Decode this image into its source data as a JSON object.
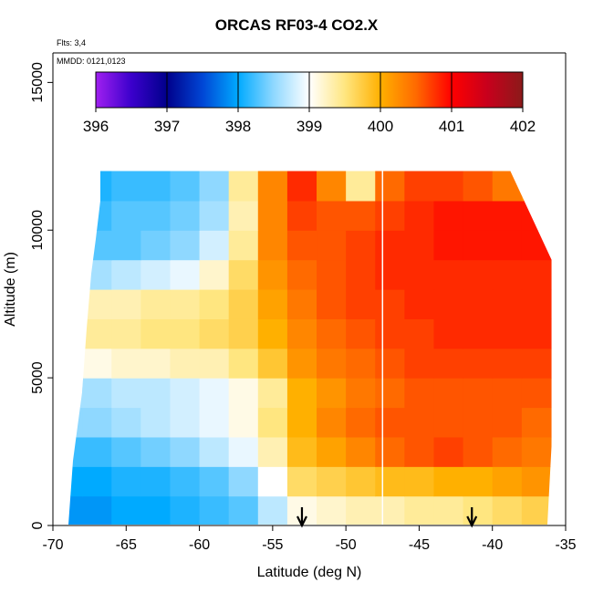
{
  "chart_data": {
    "type": "heatmap",
    "title": "ORCAS RF03-4 CO2.X",
    "annotations": [
      "Flts: 3,4",
      "MMDD: 0121,0123"
    ],
    "xlabel": "Latitude (deg N)",
    "ylabel": "Altitude (m)",
    "xlim": [
      -70,
      -35
    ],
    "ylim": [
      0,
      16000
    ],
    "xticks": [
      "-70",
      "-65",
      "-60",
      "-55",
      "-50",
      "-45",
      "-40",
      "-35"
    ],
    "xtick_values": [
      -70,
      -65,
      -60,
      -55,
      -50,
      -45,
      -40,
      -35
    ],
    "yticks": [
      "0",
      "5000",
      "10000",
      "15000"
    ],
    "ytick_values": [
      0,
      5000,
      10000,
      15000
    ],
    "colorbar": {
      "ticks": [
        "396",
        "397",
        "398",
        "399",
        "400",
        "401",
        "402"
      ],
      "range": [
        396,
        402
      ],
      "stops": [
        {
          "value": 396.0,
          "color": "#a020f0"
        },
        {
          "value": 396.5,
          "color": "#3b00cc"
        },
        {
          "value": 397.0,
          "color": "#00008b"
        },
        {
          "value": 397.5,
          "color": "#0046d5"
        },
        {
          "value": 398.0,
          "color": "#00aaff"
        },
        {
          "value": 398.5,
          "color": "#8fd8ff"
        },
        {
          "value": 399.0,
          "color": "#ffffff"
        },
        {
          "value": 399.5,
          "color": "#ffe680"
        },
        {
          "value": 400.0,
          "color": "#ffb000"
        },
        {
          "value": 400.5,
          "color": "#ff6a00"
        },
        {
          "value": 401.0,
          "color": "#ff0000"
        },
        {
          "value": 401.5,
          "color": "#c8001c"
        },
        {
          "value": 402.0,
          "color": "#8b1a1a"
        }
      ]
    },
    "latitude_bins": [
      -69,
      -67,
      -65,
      -63,
      -61,
      -59,
      -57,
      -55,
      -53,
      -51,
      -49,
      -47,
      -45,
      -43,
      -41,
      -39,
      -37
    ],
    "altitude_bins": [
      500,
      1500,
      2500,
      3500,
      4500,
      5500,
      6500,
      7500,
      8500,
      9500,
      10500,
      11500
    ],
    "co2_values": [
      [
        397.9,
        397.9,
        398.0,
        398.0,
        398.1,
        398.2,
        398.3,
        398.7,
        399.1,
        399.2,
        399.3,
        399.3,
        399.4,
        399.4,
        399.5,
        399.6,
        399.7
      ],
      [
        398.0,
        398.0,
        398.1,
        398.1,
        398.2,
        398.3,
        398.5,
        399.0,
        399.6,
        399.7,
        399.8,
        399.9,
        399.9,
        400.0,
        400.0,
        400.1,
        400.2
      ],
      [
        398.2,
        398.2,
        398.3,
        398.4,
        398.5,
        398.7,
        398.9,
        399.3,
        399.9,
        400.1,
        400.3,
        400.5,
        400.6,
        400.7,
        400.6,
        400.5,
        400.4
      ],
      [
        398.5,
        398.5,
        398.6,
        398.7,
        398.8,
        398.9,
        399.1,
        399.5,
        400.0,
        400.3,
        400.5,
        400.6,
        400.6,
        400.6,
        400.6,
        400.6,
        400.5
      ],
      [
        398.6,
        398.6,
        398.7,
        398.7,
        398.8,
        398.9,
        399.1,
        399.4,
        400.0,
        400.2,
        400.4,
        400.5,
        400.6,
        400.6,
        400.6,
        400.6,
        400.6
      ],
      [
        399.1,
        399.1,
        399.2,
        399.2,
        399.3,
        399.3,
        399.5,
        399.8,
        400.2,
        400.4,
        400.5,
        400.6,
        400.7,
        400.7,
        400.7,
        400.7,
        400.7
      ],
      [
        399.4,
        399.4,
        399.4,
        399.5,
        399.5,
        399.6,
        399.7,
        400.0,
        400.3,
        400.5,
        400.6,
        400.7,
        400.7,
        400.8,
        400.8,
        400.8,
        400.8
      ],
      [
        399.3,
        399.3,
        399.3,
        399.4,
        399.4,
        399.5,
        399.7,
        400.1,
        400.4,
        400.6,
        400.7,
        400.7,
        400.8,
        400.8,
        400.8,
        400.8,
        400.8
      ],
      [
        398.6,
        398.6,
        398.7,
        398.8,
        398.9,
        399.2,
        399.6,
        400.2,
        400.5,
        400.6,
        400.7,
        400.8,
        400.8,
        400.8,
        400.8,
        400.8,
        400.8
      ],
      [
        398.3,
        398.3,
        398.3,
        398.4,
        398.5,
        398.8,
        399.4,
        400.3,
        400.6,
        400.6,
        400.7,
        400.8,
        400.8,
        400.9,
        400.9,
        400.9,
        400.9
      ],
      [
        398.2,
        398.2,
        398.3,
        398.3,
        398.4,
        398.6,
        399.3,
        400.3,
        400.7,
        400.6,
        400.6,
        400.7,
        400.8,
        400.9,
        400.9,
        400.9,
        400.9
      ],
      [
        398.1,
        398.1,
        398.2,
        398.2,
        398.3,
        398.5,
        399.4,
        400.3,
        400.8,
        400.3,
        399.4,
        400.5,
        400.7,
        400.7,
        400.6,
        400.4,
        400.3
      ]
    ],
    "grid": false,
    "legend": "top (horizontal colorbar)"
  }
}
